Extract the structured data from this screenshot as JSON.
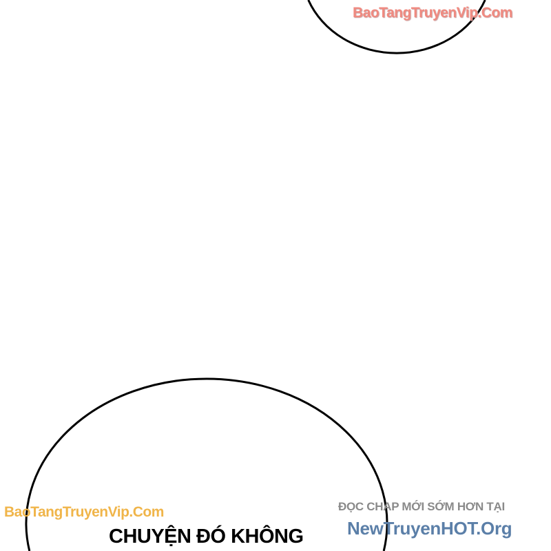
{
  "watermarks": {
    "top": "BaoTangTruyenVip.Com",
    "bottom_left": "BaoTangTruyenVip.Com"
  },
  "promo": {
    "line1": "ĐỌC CHAP MỚI SỚM HƠN TẠI",
    "line2": "NewTruyenHOT.Org"
  },
  "speech_bubbles": {
    "bottom_text": "CHUYỆN ĐÓ KHÔNG"
  },
  "colors": {
    "watermark_top": "#f08a80",
    "watermark_bottom": "#f0b54a",
    "promo_gray": "#8a8a8a",
    "promo_blue": "#5b7fa8"
  }
}
